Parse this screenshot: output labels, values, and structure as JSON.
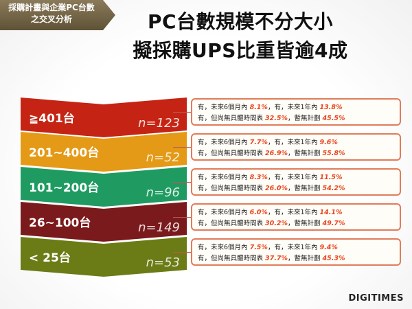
{
  "tag": {
    "line1": "採購計畫與企業PC台數",
    "line2": "之交叉分析"
  },
  "title": {
    "line1": "PC台數規模不分大小",
    "line2": "擬採購UPS比重皆逾4成"
  },
  "bands": [
    {
      "label": "≧401台",
      "n": "n=123",
      "color": "#c52414",
      "row1": {
        "a": "有，未來6個月內 ",
        "p1": "8.1%",
        "b": "，有，未來1年內 ",
        "p2": "13.8%"
      },
      "row2": {
        "a": "有，但尚無具體時間表 ",
        "p1": "32.5%",
        "b": "，暫無計劃 ",
        "p2": "45.5%"
      }
    },
    {
      "label": "201~400台",
      "n": "n=52",
      "color": "#e49a16",
      "row1": {
        "a": "有，未來6個月內 ",
        "p1": "7.7%",
        "b": "，有，未來1年內 ",
        "p2": "9.6%"
      },
      "row2": {
        "a": "有，但尚無具體時間表 ",
        "p1": "26.9%",
        "b": "，暫無計劃 ",
        "p2": "55.8%"
      }
    },
    {
      "label": "101~200台",
      "n": "n=96",
      "color": "#1f9b62",
      "row1": {
        "a": "有，未來6個月內 ",
        "p1": "8.3%",
        "b": "，有，未來1年內 ",
        "p2": "11.5%"
      },
      "row2": {
        "a": "有，但尚無具體時間表 ",
        "p1": "26.0%",
        "b": "，暫無計劃 ",
        "p2": "54.2%"
      }
    },
    {
      "label": "26~100台",
      "n": "n=149",
      "color": "#7a1a1c",
      "row1": {
        "a": "有，未來6個月內 ",
        "p1": "6.0%",
        "b": "，有，未來1年內 ",
        "p2": "14.1%"
      },
      "row2": {
        "a": "有，但尚無具體時間表 ",
        "p1": "30.2%",
        "b": "，暫無計劃 ",
        "p2": "49.7%"
      }
    },
    {
      "label": "< 25台",
      "n": "n=53",
      "color": "#6b7c16",
      "row1": {
        "a": "有，未來6個月內 ",
        "p1": "7.5%",
        "b": "，有，未來1年內 ",
        "p2": "9.4%"
      },
      "row2": {
        "a": "有，但尚無具體時間表 ",
        "p1": "37.7%",
        "b": "，暫無計劃 ",
        "p2": "45.3%"
      }
    }
  ],
  "logo": "DIGITIMES"
}
